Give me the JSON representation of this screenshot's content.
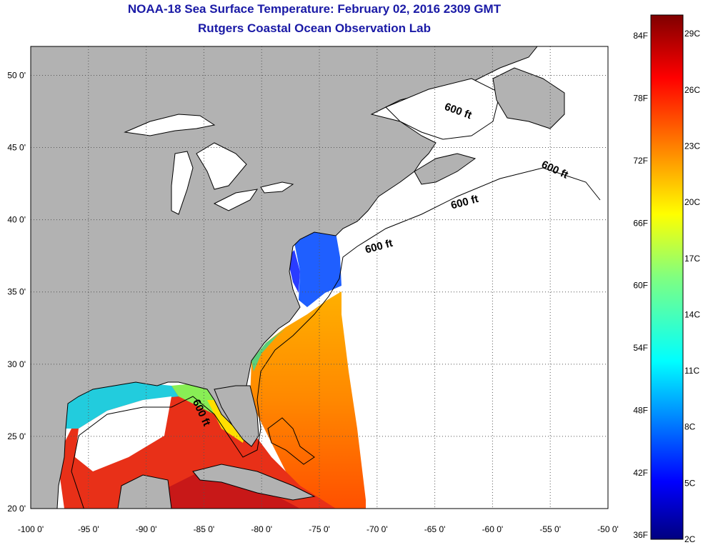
{
  "header": {
    "title": "NOAA-18 Sea Surface Temperature:  February 02, 2016 2309 GMT",
    "subtitle": "Rutgers Coastal Ocean Observation Lab"
  },
  "map": {
    "lon_range": [
      -100,
      -50
    ],
    "lat_range": [
      20,
      52
    ],
    "lon_ticks": [
      "-100 0'",
      "-95 0'",
      "-90 0'",
      "-85 0'",
      "-80 0'",
      "-75 0'",
      "-70 0'",
      "-65 0'",
      "-60 0'",
      "-55 0'",
      "-50 0'"
    ],
    "lat_ticks": [
      "20 0'",
      "25 0'",
      "30 0'",
      "35 0'",
      "40 0'",
      "45 0'",
      "50 0'"
    ],
    "depth_contour_labels": [
      "600 ft",
      "600 ft",
      "600 ft",
      "600 ft",
      "600 ft"
    ],
    "colors": {
      "land": "#b2b2b2",
      "cloud_or_no_data": "#ffffff",
      "coastline": "#000000"
    }
  },
  "colorbar": {
    "fahrenheit_labels": [
      "84F",
      "78F",
      "72F",
      "66F",
      "60F",
      "54F",
      "48F",
      "42F",
      "36F"
    ],
    "celsius_labels": [
      "29C",
      "26C",
      "23C",
      "20C",
      "17C",
      "14C",
      "11C",
      "8C",
      "5C",
      "2C"
    ],
    "range_c": [
      2,
      30
    ]
  }
}
